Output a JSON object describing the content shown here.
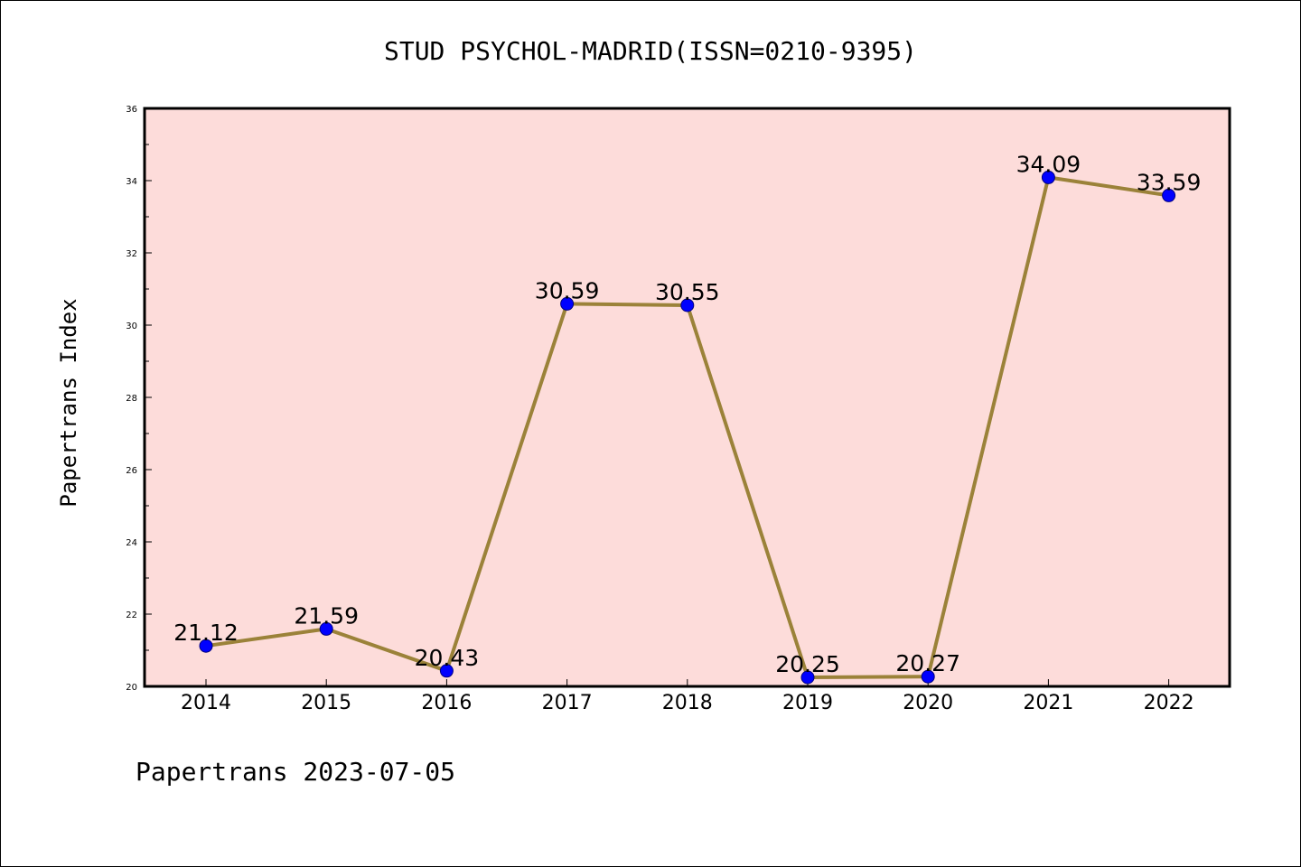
{
  "chart_data": {
    "type": "line",
    "title": "STUD PSYCHOL-MADRID(ISSN=0210-9395)",
    "xlabel": "",
    "ylabel": "Papertrans Index",
    "categories": [
      "2014",
      "2015",
      "2016",
      "2017",
      "2018",
      "2019",
      "2020",
      "2021",
      "2022"
    ],
    "values": [
      21.12,
      21.59,
      20.43,
      30.59,
      30.55,
      20.25,
      20.27,
      34.09,
      33.59
    ],
    "data_labels": [
      "21.12",
      "21.59",
      "20.43",
      "30.59",
      "30.55",
      "20.25",
      "20.27",
      "34.09",
      "33.59"
    ],
    "ylim": [
      20,
      36
    ],
    "yticks": [
      "20",
      "22",
      "24",
      "26",
      "28",
      "30",
      "32",
      "34",
      "36"
    ],
    "grid": false,
    "legend": "none",
    "colors": {
      "plot_background": "#fddcda",
      "line": "#9b8239",
      "marker": "#0000ff",
      "axes": "#000000"
    }
  },
  "footer": {
    "text": "Papertrans 2023-07-05"
  }
}
